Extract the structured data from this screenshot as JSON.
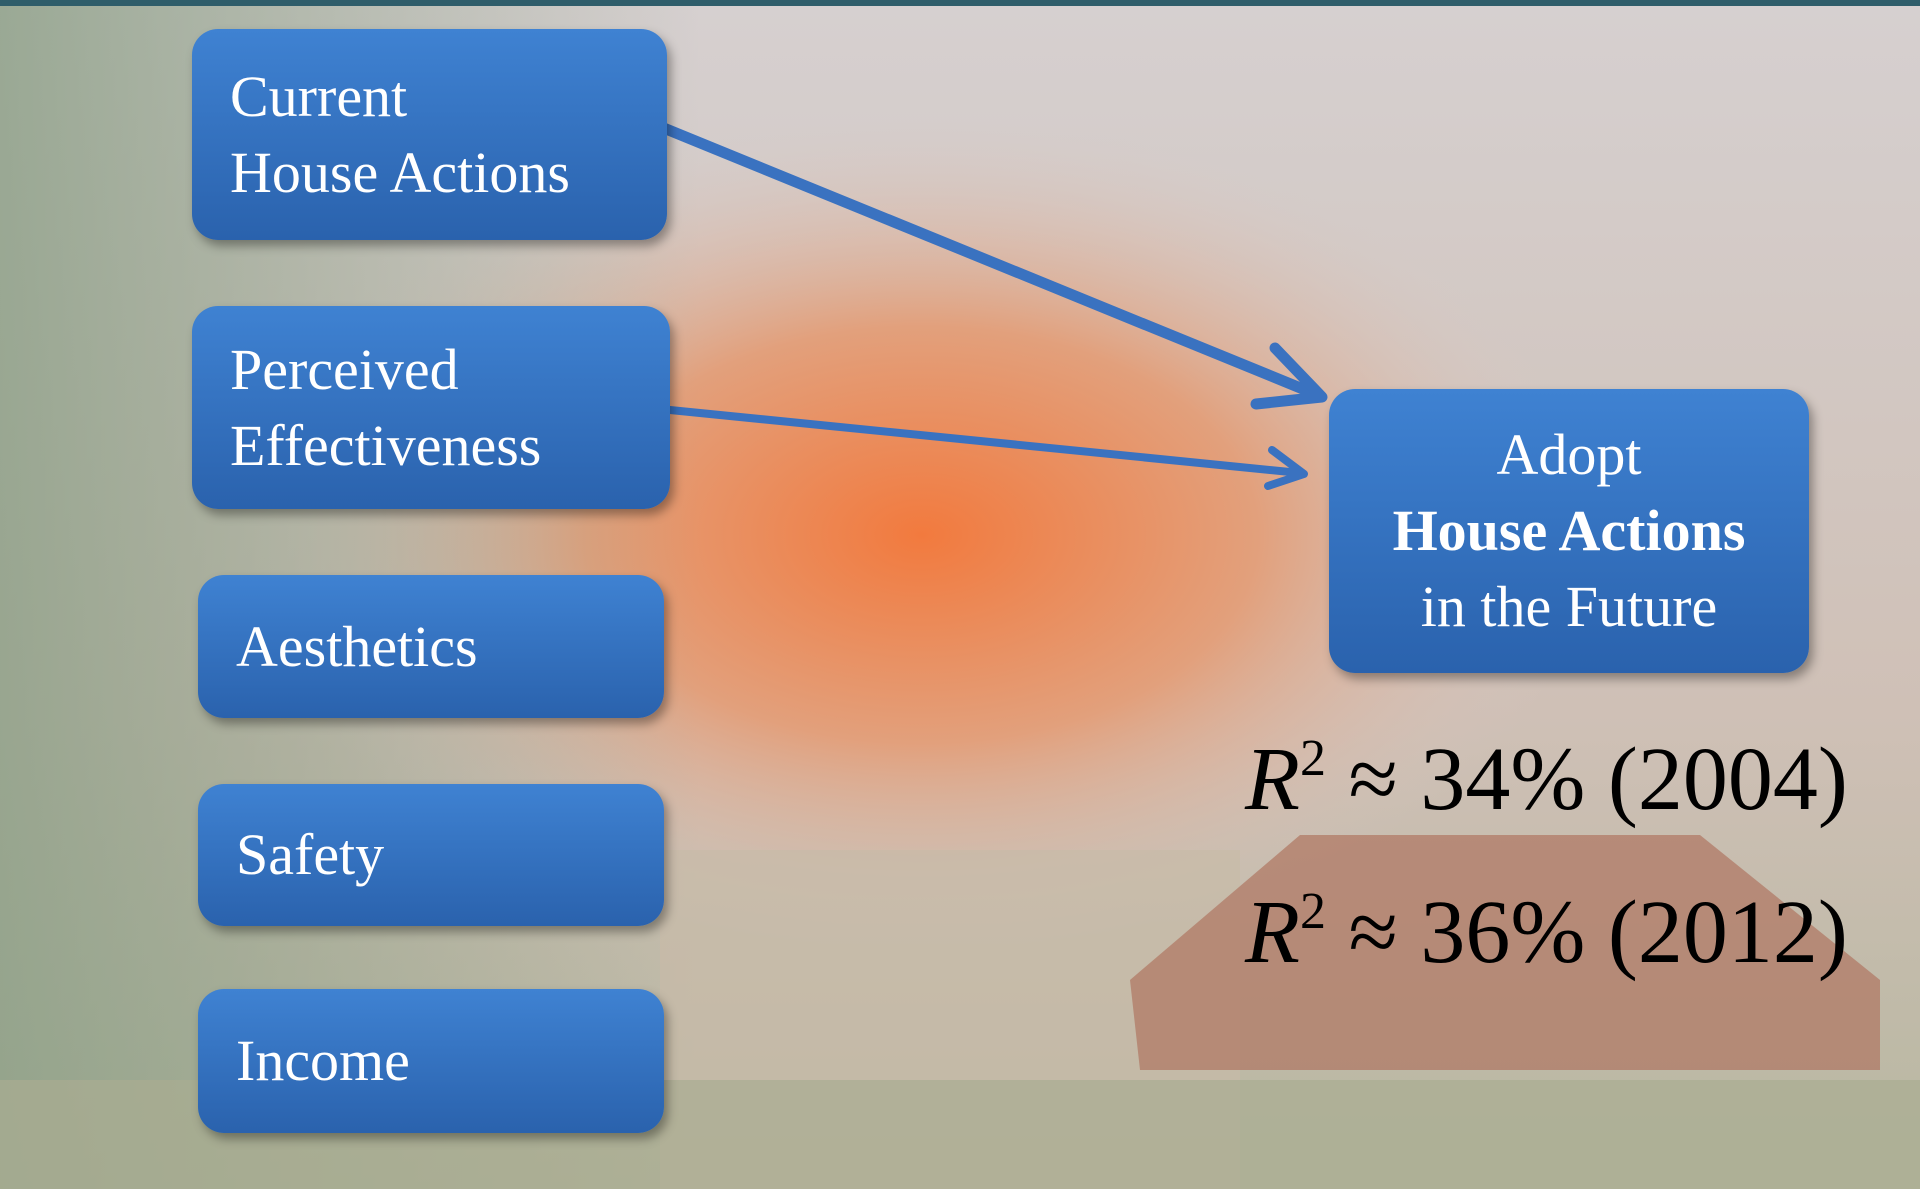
{
  "nodes": [
    {
      "lines": [
        "Current",
        "House Actions"
      ]
    },
    {
      "lines": [
        "Perceived",
        "Effectiveness"
      ]
    },
    {
      "lines": [
        "Aesthetics"
      ]
    },
    {
      "lines": [
        "Safety"
      ]
    },
    {
      "lines": [
        "Income"
      ]
    }
  ],
  "outcome": {
    "lines": [
      "Adopt",
      "House Actions",
      "in the Future"
    ]
  },
  "fits": [
    {
      "variable": "R",
      "exponent": "2",
      "text": "≈ 34% (2004)"
    },
    {
      "variable": "R",
      "exponent": "2",
      "text": "≈ 36% (2012)"
    }
  ]
}
